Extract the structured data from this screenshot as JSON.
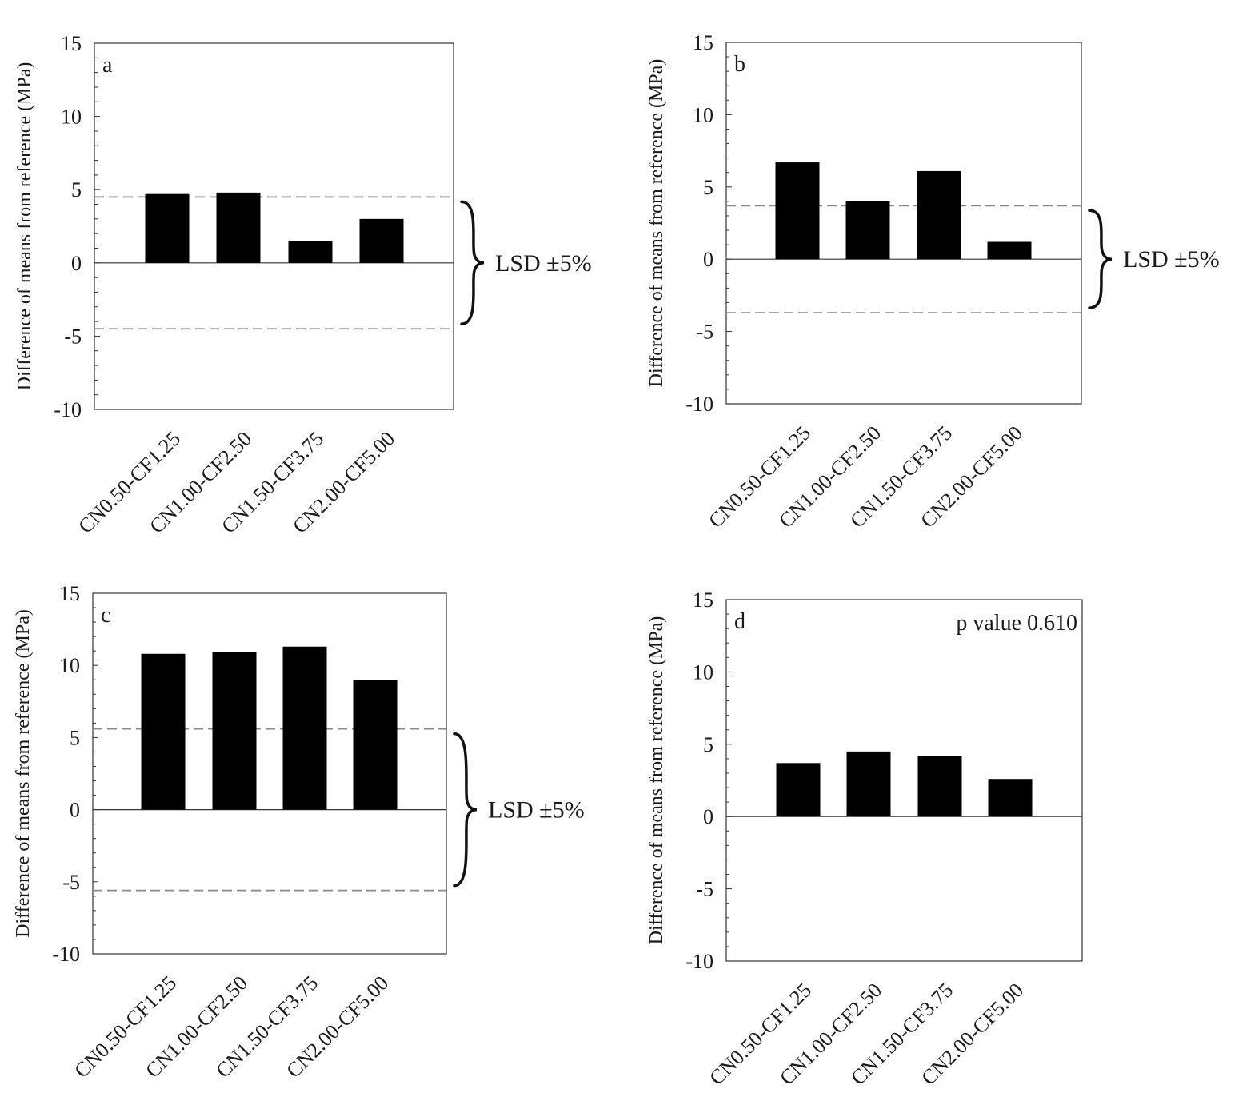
{
  "chart_data": [
    {
      "type": "bar",
      "panel_label": "a",
      "ylabel": "Difference of means from reference (MPa)",
      "ylim": [
        -10,
        15
      ],
      "yticks": [
        -10,
        -5,
        0,
        5,
        10,
        15
      ],
      "categories": [
        "CN0.50-CF1.25",
        "CN1.00-CF2.50",
        "CN1.50-CF3.75",
        "CN2.00-CF5.00"
      ],
      "values": [
        4.7,
        4.8,
        1.5,
        3.0
      ],
      "lsd": 4.5,
      "lsd_label": "LSD ±5%",
      "annotation": ""
    },
    {
      "type": "bar",
      "panel_label": "b",
      "ylabel": "Difference of means from reference (MPa)",
      "ylim": [
        -10,
        15
      ],
      "yticks": [
        -10,
        -5,
        0,
        5,
        10,
        15
      ],
      "categories": [
        "CN0.50-CF1.25",
        "CN1.00-CF2.50",
        "CN1.50-CF3.75",
        "CN2.00-CF5.00"
      ],
      "values": [
        6.7,
        4.0,
        6.1,
        1.2
      ],
      "lsd": 3.7,
      "lsd_label": "LSD ±5%",
      "annotation": ""
    },
    {
      "type": "bar",
      "panel_label": "c",
      "ylabel": "Difference of means from reference (MPa)",
      "ylim": [
        -10,
        15
      ],
      "yticks": [
        -10,
        -5,
        0,
        5,
        10,
        15
      ],
      "categories": [
        "CN0.50-CF1.25",
        "CN1.00-CF2.50",
        "CN1.50-CF3.75",
        "CN2.00-CF5.00"
      ],
      "values": [
        10.8,
        10.9,
        11.3,
        9.0
      ],
      "lsd": 5.6,
      "lsd_label": "LSD ±5%",
      "annotation": ""
    },
    {
      "type": "bar",
      "panel_label": "d",
      "ylabel": "Difference of means from reference (MPa)",
      "ylim": [
        -10,
        15
      ],
      "yticks": [
        -10,
        -5,
        0,
        5,
        10,
        15
      ],
      "categories": [
        "CN0.50-CF1.25",
        "CN1.00-CF2.50",
        "CN1.50-CF3.75",
        "CN2.00-CF5.00"
      ],
      "values": [
        3.7,
        4.5,
        4.2,
        2.6
      ],
      "lsd": null,
      "lsd_label": "",
      "annotation": "p value 0.610"
    }
  ]
}
